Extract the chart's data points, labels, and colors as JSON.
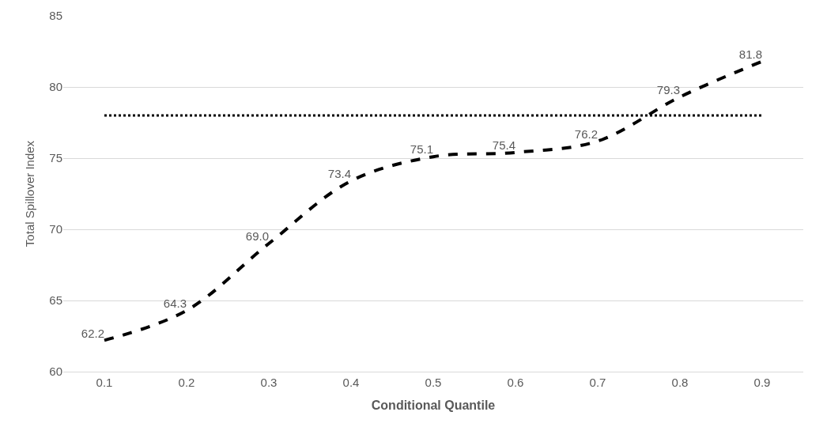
{
  "chart_data": {
    "type": "line",
    "xlabel": "Conditional Quantile",
    "ylabel": "Total Spillover Index",
    "categories": [
      "0.1",
      "0.2",
      "0.3",
      "0.4",
      "0.5",
      "0.6",
      "0.7",
      "0.8",
      "0.9"
    ],
    "series": [
      {
        "color": "#000000",
        "values": [
          62.2,
          64.3,
          69.0,
          73.4,
          75.1,
          75.4,
          76.2,
          79.3,
          81.8
        ],
        "value_labels": [
          "62.2",
          "64.3",
          "69.0",
          "73.4",
          "75.1",
          "75.4",
          "76.2",
          "79.3",
          "81.8"
        ]
      }
    ],
    "ylim": [
      60,
      85
    ],
    "yticks": [
      60,
      65,
      70,
      75,
      80,
      85
    ],
    "grid": "y",
    "line_style": "dashed",
    "marker": "none",
    "ref_lines": [
      {
        "axis": "y",
        "value": 78,
        "color": "#000000",
        "line_style": "dotted"
      }
    ]
  }
}
